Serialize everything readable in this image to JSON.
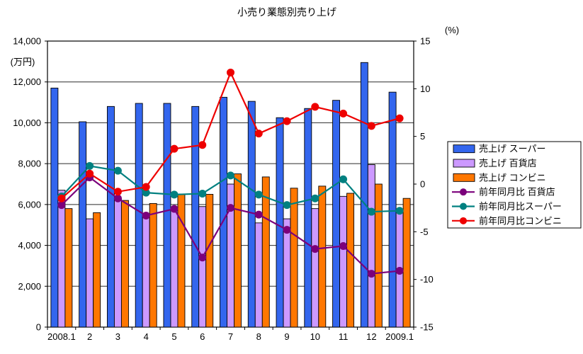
{
  "title": "小売り業態別売り上げ",
  "axes": {
    "left_unit": "(万円)",
    "right_unit": "(%)",
    "left_min": 0,
    "left_max": 14000,
    "left_step": 2000,
    "right_min": -15,
    "right_max": 15,
    "right_step": 5
  },
  "chart_data": {
    "type": "bar",
    "subtype": "bar+line combo, dual axis",
    "title": "小売り業態別売り上げ",
    "ylabel_left": "(万円)",
    "ylabel_right": "(%)",
    "ylim_left": [
      0,
      14000
    ],
    "ylim_right": [
      -15,
      15
    ],
    "grid": "horizontal gridlines every 2000 (left axis)",
    "legend_position": "right",
    "categories": [
      "2008.1",
      "2",
      "3",
      "4",
      "5",
      "6",
      "7",
      "8",
      "9",
      "10",
      "11",
      "12",
      "2009.1"
    ],
    "series": [
      {
        "name": "売上げ スーパー",
        "type": "bar",
        "axis": "left",
        "color": "#3366EE",
        "values": [
          11700,
          10050,
          10800,
          10950,
          10950,
          10800,
          11250,
          11050,
          10250,
          10700,
          11100,
          12950,
          11500
        ]
      },
      {
        "name": "売上げ 百貨店",
        "type": "bar",
        "axis": "left",
        "color": "#CC99FF",
        "values": [
          6700,
          5300,
          6300,
          5400,
          5800,
          5900,
          7000,
          5100,
          5300,
          5800,
          6400,
          7950,
          5700
        ]
      },
      {
        "name": "売上げ コンビニ",
        "type": "bar",
        "axis": "left",
        "color": "#FF7700",
        "values": [
          5800,
          5600,
          6200,
          6050,
          6500,
          6500,
          7500,
          7350,
          6800,
          6900,
          6550,
          7000,
          6300
        ]
      },
      {
        "name": "前年同月比 百貨店",
        "type": "line",
        "axis": "right",
        "color": "#7B007B",
        "values": [
          -2.2,
          0.7,
          -1.5,
          -3.3,
          -2.6,
          -7.7,
          -2.5,
          -3.2,
          -4.8,
          -6.8,
          -6.5,
          -9.4,
          -9.1
        ]
      },
      {
        "name": "前年同月比スーパー",
        "type": "line",
        "axis": "right",
        "color": "#008080",
        "values": [
          -1.3,
          1.9,
          1.4,
          -0.9,
          -1.1,
          -1.0,
          0.9,
          -1.1,
          -2.2,
          -1.5,
          0.5,
          -2.9,
          -2.8
        ]
      },
      {
        "name": "前年同月比コンビニ",
        "type": "line",
        "axis": "right",
        "color": "#EE0000",
        "values": [
          -1.5,
          1.1,
          -0.8,
          -0.3,
          3.7,
          4.1,
          11.7,
          5.3,
          6.6,
          8.1,
          7.4,
          6.1,
          6.9
        ]
      }
    ]
  }
}
